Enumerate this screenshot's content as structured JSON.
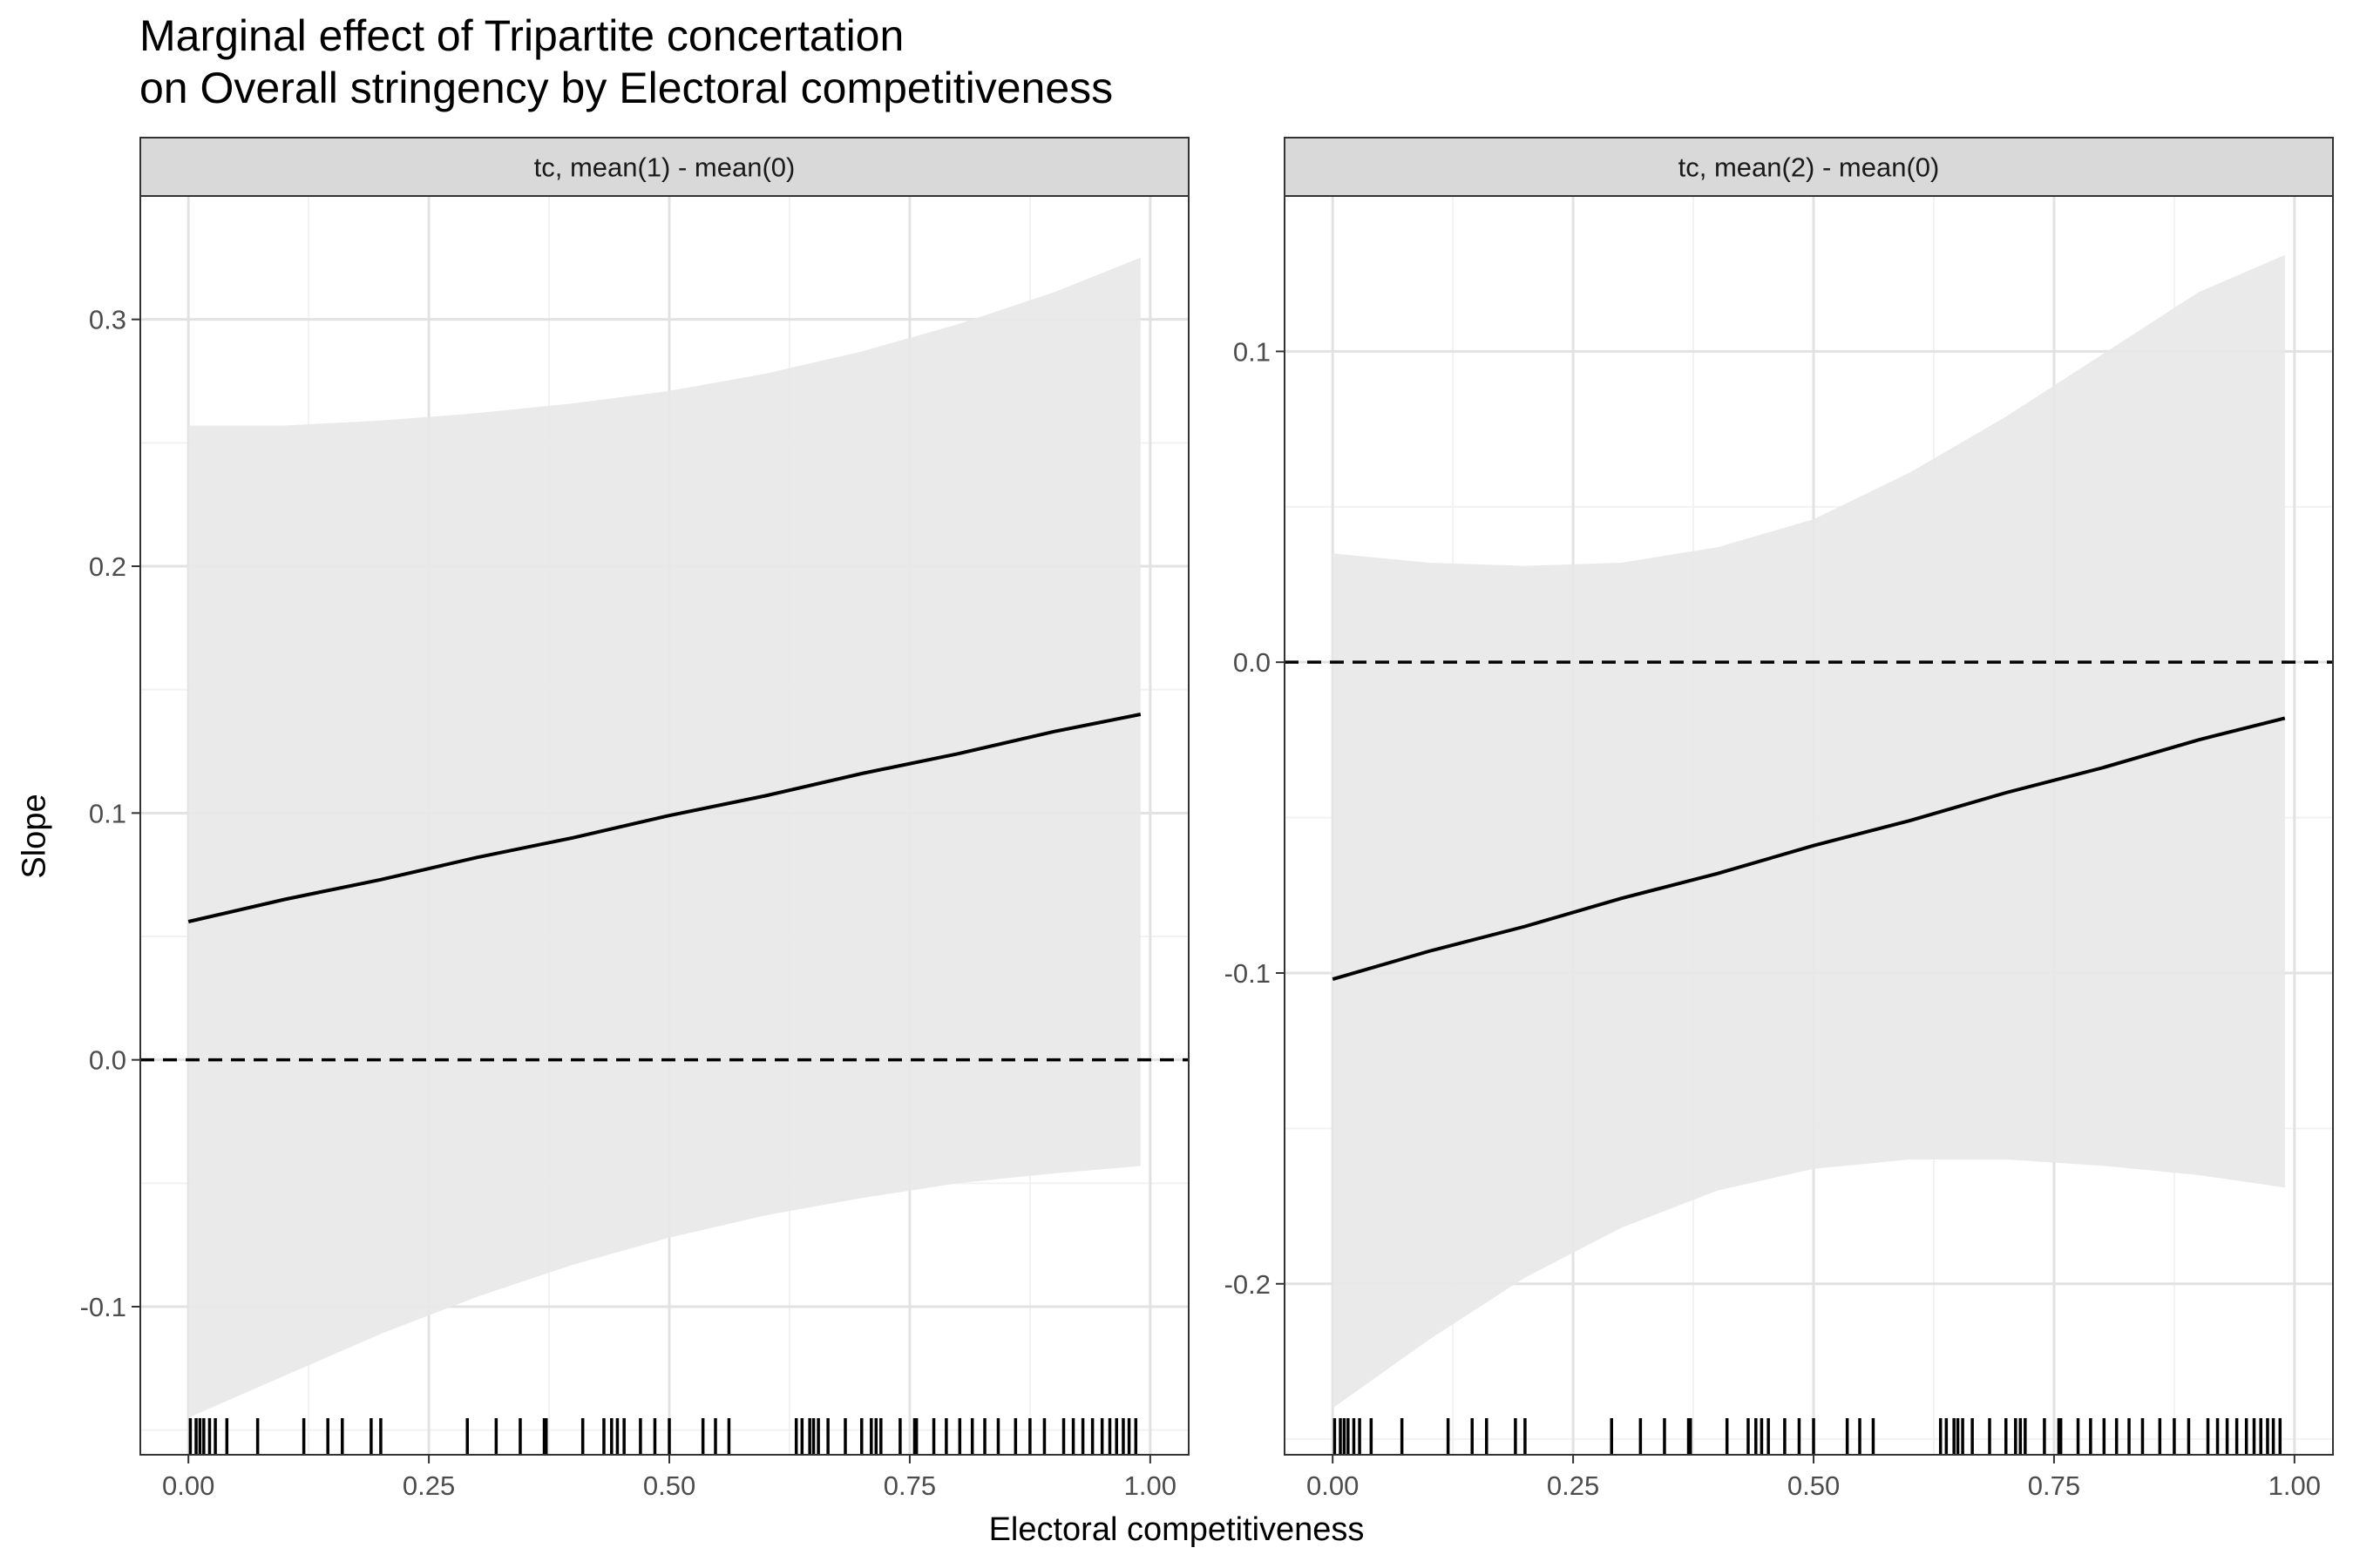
{
  "title_lines": [
    "Marginal effect of Tripartite concertation",
    "on Overall stringency by Electoral competitiveness"
  ],
  "chart_data": {
    "type": "line",
    "xlabel": "Electoral competitiveness",
    "ylabel": "Slope",
    "grid": true,
    "reference_line": {
      "y": 0,
      "style": "dashed"
    },
    "x_ticks": [
      0,
      0.25,
      0.5,
      0.75,
      1
    ],
    "x_tick_labels": [
      "0.00",
      "0.25",
      "0.50",
      "0.75",
      "1.00"
    ],
    "xlim": [
      -0.05,
      1.04
    ],
    "colors": {
      "line": "#000000",
      "ribbon": "#e8e8e8",
      "strip": "#d9d9d9",
      "grid_major": "#e2e2e2",
      "grid_minor": "#f2f2f2"
    },
    "rug_x": [
      0.002,
      0.008,
      0.012,
      0.016,
      0.022,
      0.028,
      0.04,
      0.072,
      0.12,
      0.145,
      0.16,
      0.19,
      0.2,
      0.29,
      0.32,
      0.345,
      0.37,
      0.372,
      0.41,
      0.432,
      0.44,
      0.446,
      0.453,
      0.47,
      0.485,
      0.5,
      0.535,
      0.548,
      0.562,
      0.632,
      0.638,
      0.646,
      0.65,
      0.655,
      0.665,
      0.683,
      0.7,
      0.71,
      0.715,
      0.72,
      0.74,
      0.755,
      0.757,
      0.775,
      0.788,
      0.802,
      0.815,
      0.828,
      0.842,
      0.86,
      0.875,
      0.89,
      0.91,
      0.92,
      0.93,
      0.94,
      0.95,
      0.958,
      0.965,
      0.972,
      0.978,
      0.985
    ],
    "panels": [
      {
        "strip": "tc, mean(1) - mean(0)",
        "ylim": [
          -0.16,
          0.35
        ],
        "y_ticks": [
          -0.1,
          0,
          0.1,
          0.2,
          0.3
        ],
        "y_tick_labels": [
          "-0.1",
          "0.0",
          "0.1",
          "0.2",
          "0.3"
        ],
        "x": [
          0,
          0.1,
          0.2,
          0.3,
          0.4,
          0.5,
          0.6,
          0.7,
          0.8,
          0.9,
          0.99
        ],
        "estimate": [
          0.056,
          0.065,
          0.073,
          0.082,
          0.09,
          0.099,
          0.107,
          0.116,
          0.124,
          0.133,
          0.14
        ],
        "lower": [
          -0.145,
          -0.128,
          -0.111,
          -0.096,
          -0.083,
          -0.072,
          -0.063,
          -0.056,
          -0.05,
          -0.046,
          -0.043
        ],
        "upper": [
          0.257,
          0.257,
          0.259,
          0.262,
          0.266,
          0.271,
          0.278,
          0.287,
          0.298,
          0.311,
          0.325
        ]
      },
      {
        "strip": "tc, mean(2) - mean(0)",
        "ylim": [
          -0.255,
          0.15
        ],
        "y_ticks": [
          -0.2,
          -0.1,
          0,
          0.1
        ],
        "y_tick_labels": [
          "-0.2",
          "-0.1",
          "0.0",
          "0.1"
        ],
        "x": [
          0,
          0.1,
          0.2,
          0.3,
          0.4,
          0.5,
          0.6,
          0.7,
          0.8,
          0.9,
          0.99
        ],
        "estimate": [
          -0.102,
          -0.093,
          -0.085,
          -0.076,
          -0.068,
          -0.059,
          -0.051,
          -0.042,
          -0.034,
          -0.025,
          -0.018
        ],
        "lower": [
          -0.24,
          -0.218,
          -0.198,
          -0.182,
          -0.17,
          -0.163,
          -0.16,
          -0.16,
          -0.162,
          -0.165,
          -0.169
        ],
        "upper": [
          0.035,
          0.032,
          0.031,
          0.032,
          0.037,
          0.046,
          0.061,
          0.079,
          0.099,
          0.119,
          0.131
        ]
      }
    ]
  }
}
